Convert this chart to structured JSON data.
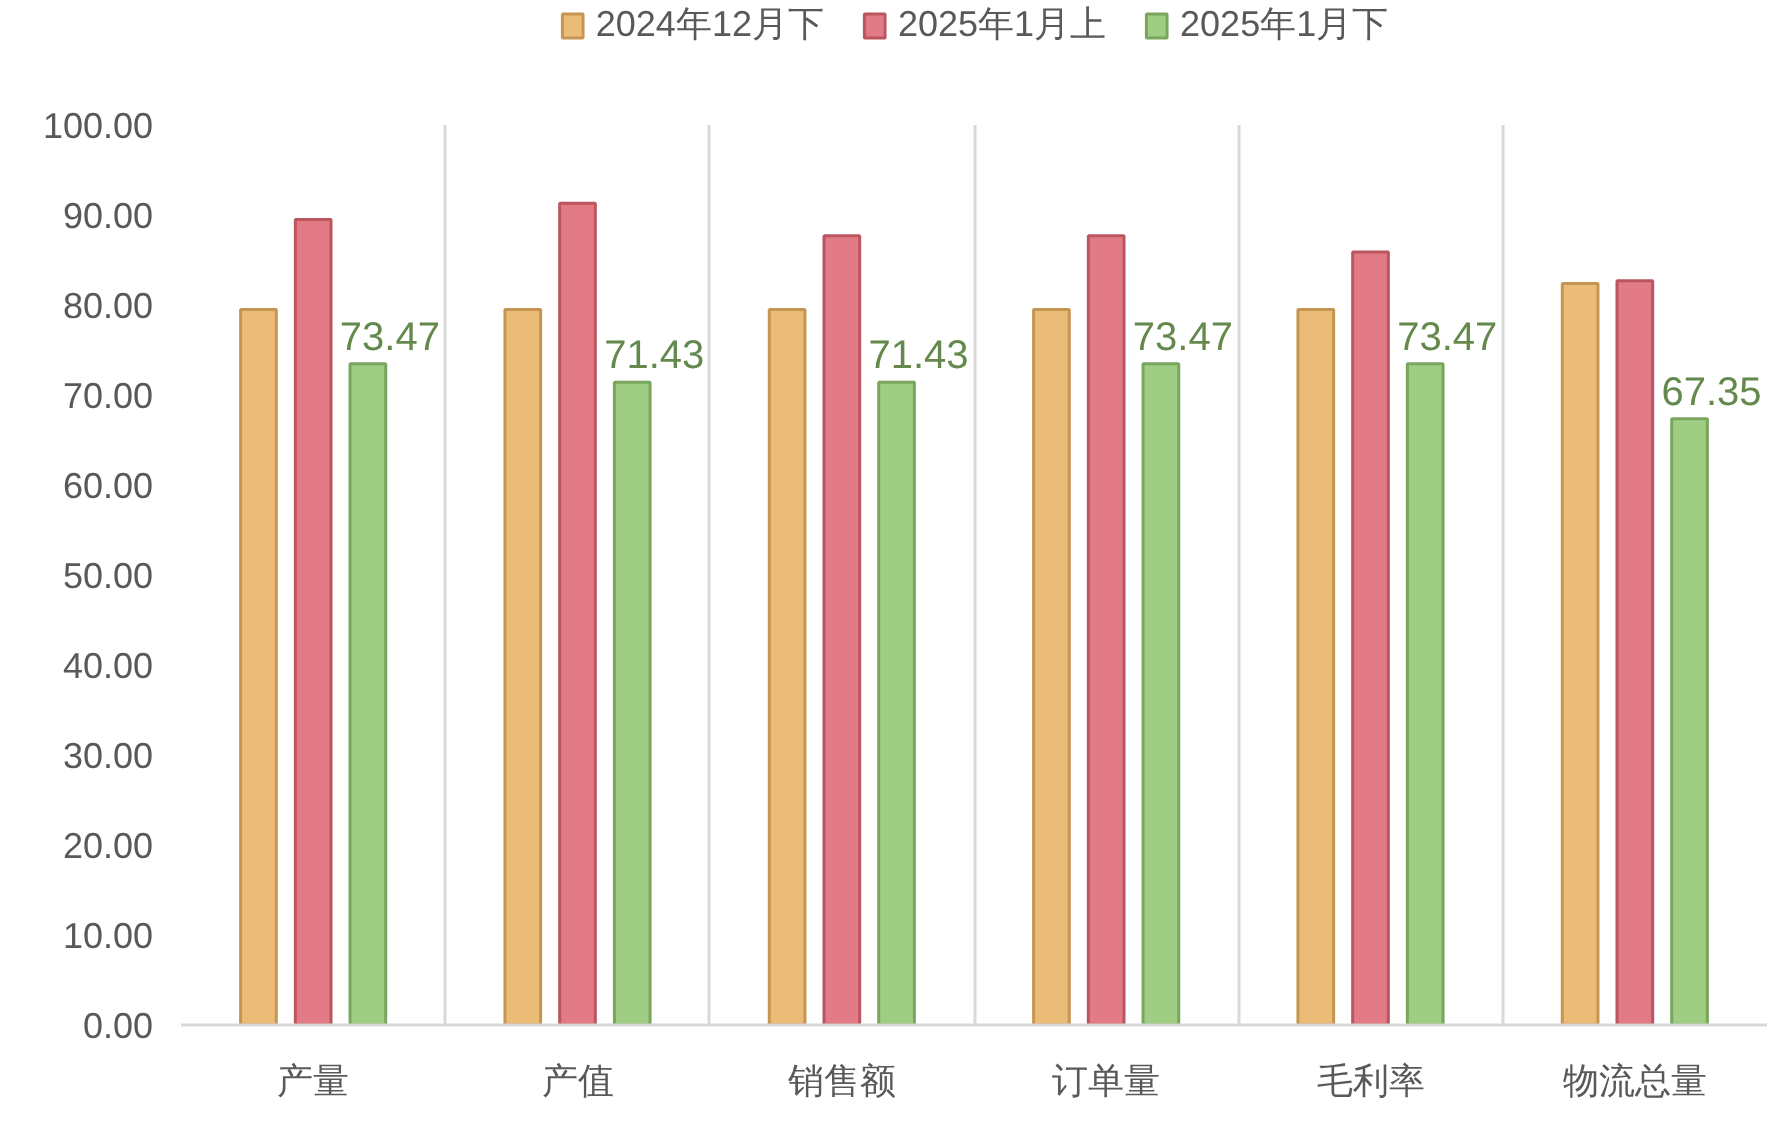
{
  "chart_data": {
    "type": "bar",
    "categories": [
      "产量",
      "产值",
      "销售额",
      "订单量",
      "毛利率",
      "物流总量"
    ],
    "series": [
      {
        "name": "2024年12月下",
        "color": "#e8b060",
        "values": [
          79.5,
          79.5,
          79.5,
          79.5,
          79.5,
          82.4
        ]
      },
      {
        "name": "2025年1月上",
        "color": "#dd6470",
        "values": [
          89.5,
          91.3,
          87.7,
          87.7,
          85.9,
          82.7
        ]
      },
      {
        "name": "2025年1月下",
        "color": "#8fc46e",
        "values": [
          73.47,
          71.43,
          71.43,
          73.47,
          73.47,
          67.35
        ],
        "value_labels": [
          "73.47",
          "71.43",
          "71.43",
          "73.47",
          "73.47",
          "67.35"
        ]
      }
    ],
    "ylim": [
      0,
      100
    ],
    "yticks": [
      {
        "value": 0,
        "label": "0.00"
      },
      {
        "value": 10,
        "label": "10.00"
      },
      {
        "value": 20,
        "label": "20.00"
      },
      {
        "value": 30,
        "label": "30.00"
      },
      {
        "value": 40,
        "label": "40.00"
      },
      {
        "value": 50,
        "label": "50.00"
      },
      {
        "value": 60,
        "label": "60.00"
      },
      {
        "value": 70,
        "label": "70.00"
      },
      {
        "value": 80,
        "label": "80.00"
      },
      {
        "value": 90,
        "label": "90.00"
      },
      {
        "value": 100,
        "label": "100.00"
      }
    ],
    "grid": "x",
    "legend": "top"
  }
}
